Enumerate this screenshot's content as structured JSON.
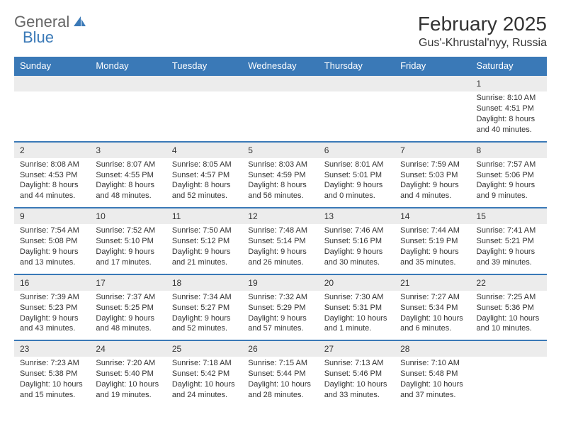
{
  "logo": {
    "textA": "General",
    "textB": "Blue"
  },
  "title": "February 2025",
  "location": "Gus'-Khrustal'nyy, Russia",
  "colors": {
    "headerBg": "#3a79b7",
    "headerText": "#ffffff",
    "dayNumBg": "#ececec",
    "border": "#3a79b7",
    "bodyText": "#333333"
  },
  "dayNames": [
    "Sunday",
    "Monday",
    "Tuesday",
    "Wednesday",
    "Thursday",
    "Friday",
    "Saturday"
  ],
  "weeks": [
    {
      "nums": [
        "",
        "",
        "",
        "",
        "",
        "",
        "1"
      ],
      "details": [
        "",
        "",
        "",
        "",
        "",
        "",
        "Sunrise: 8:10 AM\nSunset: 4:51 PM\nDaylight: 8 hours and 40 minutes."
      ]
    },
    {
      "nums": [
        "2",
        "3",
        "4",
        "5",
        "6",
        "7",
        "8"
      ],
      "details": [
        "Sunrise: 8:08 AM\nSunset: 4:53 PM\nDaylight: 8 hours and 44 minutes.",
        "Sunrise: 8:07 AM\nSunset: 4:55 PM\nDaylight: 8 hours and 48 minutes.",
        "Sunrise: 8:05 AM\nSunset: 4:57 PM\nDaylight: 8 hours and 52 minutes.",
        "Sunrise: 8:03 AM\nSunset: 4:59 PM\nDaylight: 8 hours and 56 minutes.",
        "Sunrise: 8:01 AM\nSunset: 5:01 PM\nDaylight: 9 hours and 0 minutes.",
        "Sunrise: 7:59 AM\nSunset: 5:03 PM\nDaylight: 9 hours and 4 minutes.",
        "Sunrise: 7:57 AM\nSunset: 5:06 PM\nDaylight: 9 hours and 9 minutes."
      ]
    },
    {
      "nums": [
        "9",
        "10",
        "11",
        "12",
        "13",
        "14",
        "15"
      ],
      "details": [
        "Sunrise: 7:54 AM\nSunset: 5:08 PM\nDaylight: 9 hours and 13 minutes.",
        "Sunrise: 7:52 AM\nSunset: 5:10 PM\nDaylight: 9 hours and 17 minutes.",
        "Sunrise: 7:50 AM\nSunset: 5:12 PM\nDaylight: 9 hours and 21 minutes.",
        "Sunrise: 7:48 AM\nSunset: 5:14 PM\nDaylight: 9 hours and 26 minutes.",
        "Sunrise: 7:46 AM\nSunset: 5:16 PM\nDaylight: 9 hours and 30 minutes.",
        "Sunrise: 7:44 AM\nSunset: 5:19 PM\nDaylight: 9 hours and 35 minutes.",
        "Sunrise: 7:41 AM\nSunset: 5:21 PM\nDaylight: 9 hours and 39 minutes."
      ]
    },
    {
      "nums": [
        "16",
        "17",
        "18",
        "19",
        "20",
        "21",
        "22"
      ],
      "details": [
        "Sunrise: 7:39 AM\nSunset: 5:23 PM\nDaylight: 9 hours and 43 minutes.",
        "Sunrise: 7:37 AM\nSunset: 5:25 PM\nDaylight: 9 hours and 48 minutes.",
        "Sunrise: 7:34 AM\nSunset: 5:27 PM\nDaylight: 9 hours and 52 minutes.",
        "Sunrise: 7:32 AM\nSunset: 5:29 PM\nDaylight: 9 hours and 57 minutes.",
        "Sunrise: 7:30 AM\nSunset: 5:31 PM\nDaylight: 10 hours and 1 minute.",
        "Sunrise: 7:27 AM\nSunset: 5:34 PM\nDaylight: 10 hours and 6 minutes.",
        "Sunrise: 7:25 AM\nSunset: 5:36 PM\nDaylight: 10 hours and 10 minutes."
      ]
    },
    {
      "nums": [
        "23",
        "24",
        "25",
        "26",
        "27",
        "28",
        ""
      ],
      "details": [
        "Sunrise: 7:23 AM\nSunset: 5:38 PM\nDaylight: 10 hours and 15 minutes.",
        "Sunrise: 7:20 AM\nSunset: 5:40 PM\nDaylight: 10 hours and 19 minutes.",
        "Sunrise: 7:18 AM\nSunset: 5:42 PM\nDaylight: 10 hours and 24 minutes.",
        "Sunrise: 7:15 AM\nSunset: 5:44 PM\nDaylight: 10 hours and 28 minutes.",
        "Sunrise: 7:13 AM\nSunset: 5:46 PM\nDaylight: 10 hours and 33 minutes.",
        "Sunrise: 7:10 AM\nSunset: 5:48 PM\nDaylight: 10 hours and 37 minutes.",
        ""
      ]
    }
  ]
}
